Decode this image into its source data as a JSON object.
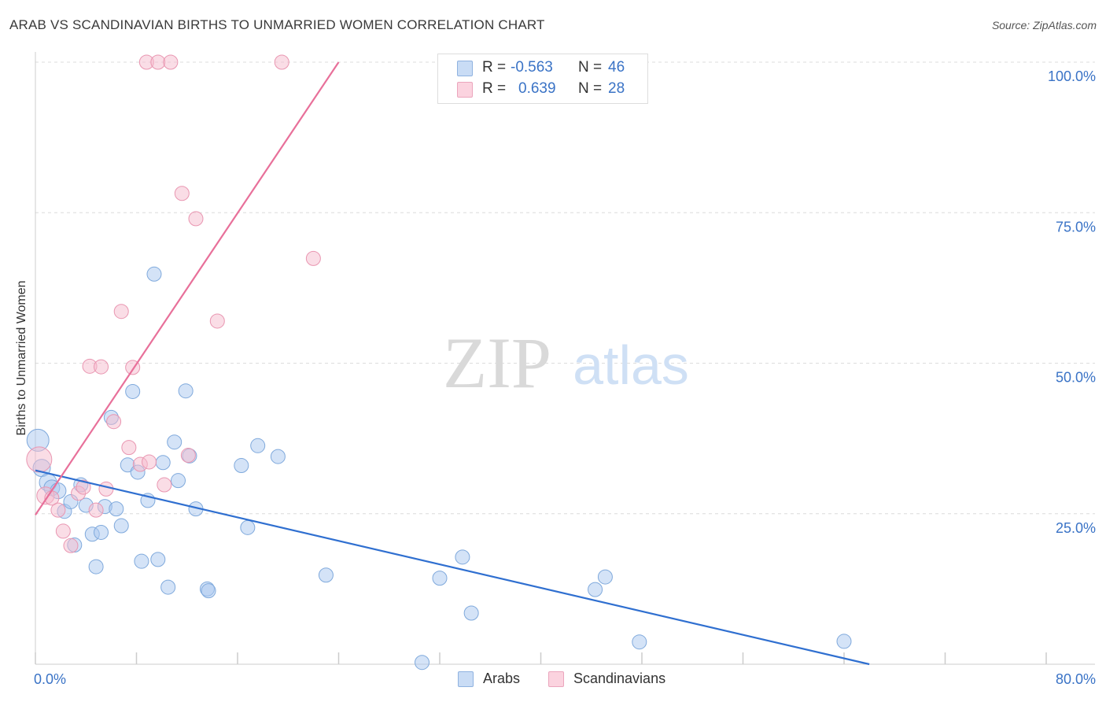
{
  "title": "ARAB VS SCANDINAVIAN BIRTHS TO UNMARRIED WOMEN CORRELATION CHART",
  "source": "Source: ZipAtlas.com",
  "watermark": {
    "zip": "ZIP",
    "atlas": "atlas"
  },
  "legend": {
    "rows": [
      {
        "r_label": "R =",
        "r_value": "-0.563",
        "n_label": "N =",
        "n_value": "46",
        "color": "#a9c8ef"
      },
      {
        "r_label": "R =",
        "r_value": "0.639",
        "n_label": "N =",
        "n_value": "28",
        "color": "#f6bccd"
      }
    ]
  },
  "bottom_legend": [
    {
      "label": "Arabs",
      "color": "#a9c8ef"
    },
    {
      "label": "Scandinavians",
      "color": "#f6bccd"
    }
  ],
  "chart_data": {
    "type": "scatter",
    "title": "ARAB VS SCANDINAVIAN BIRTHS TO UNMARRIED WOMEN CORRELATION CHART",
    "xlabel": "",
    "ylabel": "Births to Unmarried Women",
    "xlim": [
      0,
      80
    ],
    "ylim": [
      0,
      100
    ],
    "x_tick_labels": [
      "0.0%",
      "80.0%"
    ],
    "y_tick_labels": [
      "100.0%",
      "75.0%",
      "50.0%",
      "25.0%"
    ],
    "y_ticks": [
      100,
      75,
      50,
      25
    ],
    "x_minor_ticks": [
      0,
      8,
      16,
      24,
      32,
      40,
      48,
      56,
      64,
      72,
      80
    ],
    "grid": true,
    "series": [
      {
        "name": "Arabs",
        "color": "#a9c8ef",
        "stroke": "#7fa9dc",
        "trend_color": "#2f6fd0",
        "trend": [
          [
            0,
            32.2
          ],
          [
            66,
            0
          ]
        ],
        "points": [
          [
            0.2,
            37.2,
            14
          ],
          [
            0.5,
            32.6,
            11
          ],
          [
            1.0,
            30.2,
            11
          ],
          [
            1.3,
            29.3,
            10
          ],
          [
            1.8,
            28.8,
            10
          ],
          [
            2.3,
            25.4,
            9
          ],
          [
            2.8,
            27.0,
            9
          ],
          [
            3.1,
            19.8,
            9
          ],
          [
            3.6,
            29.8,
            9
          ],
          [
            4.0,
            26.4,
            9
          ],
          [
            4.5,
            21.6,
            9
          ],
          [
            4.8,
            16.2,
            9
          ],
          [
            5.2,
            21.9,
            9
          ],
          [
            5.5,
            26.2,
            9
          ],
          [
            6.0,
            41.0,
            9
          ],
          [
            6.4,
            25.8,
            9
          ],
          [
            6.8,
            23.0,
            9
          ],
          [
            7.3,
            33.1,
            9
          ],
          [
            7.7,
            45.3,
            9
          ],
          [
            8.1,
            31.9,
            9
          ],
          [
            8.4,
            17.1,
            9
          ],
          [
            8.9,
            27.2,
            9
          ],
          [
            9.4,
            64.8,
            9
          ],
          [
            9.7,
            17.4,
            9
          ],
          [
            10.1,
            33.5,
            9
          ],
          [
            10.5,
            12.8,
            9
          ],
          [
            11.0,
            36.9,
            9
          ],
          [
            11.3,
            30.5,
            9
          ],
          [
            11.9,
            45.4,
            9
          ],
          [
            12.2,
            34.6,
            9
          ],
          [
            12.7,
            25.8,
            9
          ],
          [
            13.6,
            12.5,
            9
          ],
          [
            13.7,
            12.2,
            9
          ],
          [
            16.3,
            33.0,
            9
          ],
          [
            16.8,
            22.7,
            9
          ],
          [
            17.6,
            36.3,
            9
          ],
          [
            19.2,
            34.5,
            9
          ],
          [
            23.0,
            14.8,
            9
          ],
          [
            30.6,
            0.3,
            9
          ],
          [
            32.0,
            14.3,
            9
          ],
          [
            33.8,
            17.8,
            9
          ],
          [
            34.5,
            8.5,
            9
          ],
          [
            44.3,
            12.4,
            9
          ],
          [
            45.1,
            14.5,
            9
          ],
          [
            47.8,
            3.7,
            9
          ],
          [
            64.0,
            3.8,
            9
          ]
        ]
      },
      {
        "name": "Scandinavians",
        "color": "#f6bccd",
        "stroke": "#e996b1",
        "trend_color": "#e8709a",
        "trend": [
          [
            0,
            24.8
          ],
          [
            24,
            100
          ]
        ],
        "points": [
          [
            0.3,
            34.0,
            16
          ],
          [
            0.8,
            28.0,
            11
          ],
          [
            1.3,
            27.6,
            9
          ],
          [
            1.8,
            25.6,
            9
          ],
          [
            2.2,
            22.1,
            9
          ],
          [
            2.8,
            19.7,
            9
          ],
          [
            3.4,
            28.4,
            9
          ],
          [
            3.8,
            29.4,
            9
          ],
          [
            4.3,
            49.5,
            9
          ],
          [
            4.8,
            25.6,
            9
          ],
          [
            5.2,
            49.4,
            9
          ],
          [
            5.6,
            29.1,
            9
          ],
          [
            6.2,
            40.3,
            9
          ],
          [
            6.8,
            58.6,
            9
          ],
          [
            7.4,
            36.0,
            9
          ],
          [
            7.7,
            49.3,
            9
          ],
          [
            8.3,
            33.2,
            9
          ],
          [
            8.8,
            100.0,
            9
          ],
          [
            9.0,
            33.6,
            9
          ],
          [
            9.7,
            100.0,
            9
          ],
          [
            10.2,
            29.8,
            9
          ],
          [
            10.7,
            100.0,
            9
          ],
          [
            11.6,
            78.2,
            9
          ],
          [
            12.1,
            34.7,
            9
          ],
          [
            12.7,
            74.0,
            9
          ],
          [
            14.4,
            57.0,
            9
          ],
          [
            19.5,
            100.0,
            9
          ],
          [
            22.0,
            67.4,
            9
          ]
        ]
      }
    ]
  }
}
